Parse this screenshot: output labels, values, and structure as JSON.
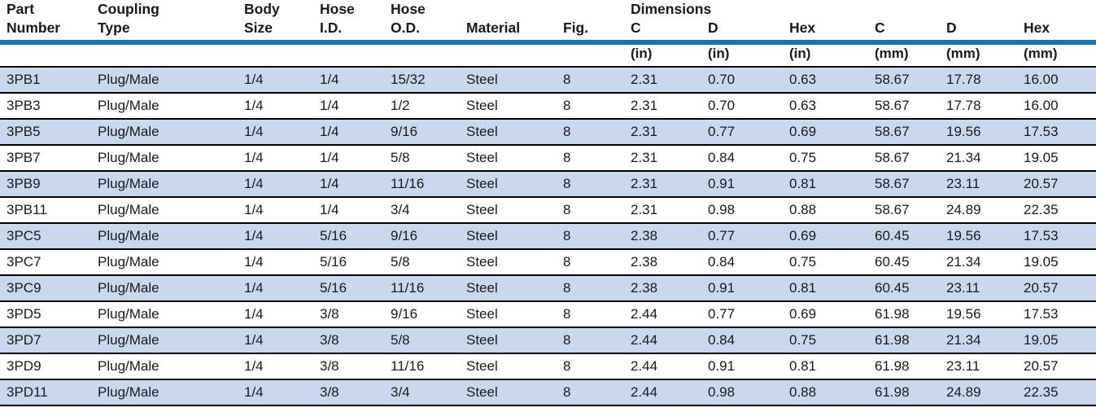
{
  "colors": {
    "header_rule_blue": "#0f75ba",
    "row_stripe_blue": "#c8d8ee",
    "row_separator": "#000000",
    "text": "#1a1a1a"
  },
  "table": {
    "dimensions_group_label": "Dimensions",
    "columns": [
      {
        "id": "part-number",
        "label": "Part\nNumber",
        "unit": ""
      },
      {
        "id": "coupling-type",
        "label": "Coupling\nType",
        "unit": ""
      },
      {
        "id": "body-size",
        "label": "Body\nSize",
        "unit": ""
      },
      {
        "id": "hose-id",
        "label": "Hose\nI.D.",
        "unit": ""
      },
      {
        "id": "hose-od",
        "label": "Hose\nO.D.",
        "unit": ""
      },
      {
        "id": "material",
        "label": "Material",
        "unit": ""
      },
      {
        "id": "fig",
        "label": "Fig.",
        "unit": ""
      },
      {
        "id": "c-in",
        "label": "C",
        "unit": "(in)"
      },
      {
        "id": "d-in",
        "label": "D",
        "unit": "(in)"
      },
      {
        "id": "hex-in",
        "label": "Hex",
        "unit": "(in)"
      },
      {
        "id": "c-mm",
        "label": "C",
        "unit": "(mm)"
      },
      {
        "id": "d-mm",
        "label": "D",
        "unit": "(mm)"
      },
      {
        "id": "hex-mm",
        "label": "Hex",
        "unit": "(mm)"
      }
    ],
    "rows": [
      [
        "3PB1",
        "Plug/Male",
        "1/4",
        "1/4",
        "15/32",
        "Steel",
        "8",
        "2.31",
        "0.70",
        "0.63",
        "58.67",
        "17.78",
        "16.00"
      ],
      [
        "3PB3",
        "Plug/Male",
        "1/4",
        "1/4",
        "1/2",
        "Steel",
        "8",
        "2.31",
        "0.70",
        "0.63",
        "58.67",
        "17.78",
        "16.00"
      ],
      [
        "3PB5",
        "Plug/Male",
        "1/4",
        "1/4",
        "9/16",
        "Steel",
        "8",
        "2.31",
        "0.77",
        "0.69",
        "58.67",
        "19.56",
        "17.53"
      ],
      [
        "3PB7",
        "Plug/Male",
        "1/4",
        "1/4",
        "5/8",
        "Steel",
        "8",
        "2.31",
        "0.84",
        "0.75",
        "58.67",
        "21.34",
        "19.05"
      ],
      [
        "3PB9",
        "Plug/Male",
        "1/4",
        "1/4",
        "11/16",
        "Steel",
        "8",
        "2.31",
        "0.91",
        "0.81",
        "58.67",
        "23.11",
        "20.57"
      ],
      [
        "3PB11",
        "Plug/Male",
        "1/4",
        "1/4",
        "3/4",
        "Steel",
        "8",
        "2.31",
        "0.98",
        "0.88",
        "58.67",
        "24.89",
        "22.35"
      ],
      [
        "3PC5",
        "Plug/Male",
        "1/4",
        "5/16",
        "9/16",
        "Steel",
        "8",
        "2.38",
        "0.77",
        "0.69",
        "60.45",
        "19.56",
        "17.53"
      ],
      [
        "3PC7",
        "Plug/Male",
        "1/4",
        "5/16",
        "5/8",
        "Steel",
        "8",
        "2.38",
        "0.84",
        "0.75",
        "60.45",
        "21.34",
        "19.05"
      ],
      [
        "3PC9",
        "Plug/Male",
        "1/4",
        "5/16",
        "11/16",
        "Steel",
        "8",
        "2.38",
        "0.91",
        "0.81",
        "60.45",
        "23.11",
        "20.57"
      ],
      [
        "3PD5",
        "Plug/Male",
        "1/4",
        "3/8",
        "9/16",
        "Steel",
        "8",
        "2.44",
        "0.77",
        "0.69",
        "61.98",
        "19.56",
        "17.53"
      ],
      [
        "3PD7",
        "Plug/Male",
        "1/4",
        "3/8",
        "5/8",
        "Steel",
        "8",
        "2.44",
        "0.84",
        "0.75",
        "61.98",
        "21.34",
        "19.05"
      ],
      [
        "3PD9",
        "Plug/Male",
        "1/4",
        "3/8",
        "11/16",
        "Steel",
        "8",
        "2.44",
        "0.91",
        "0.81",
        "61.98",
        "23.11",
        "20.57"
      ],
      [
        "3PD11",
        "Plug/Male",
        "1/4",
        "3/8",
        "3/4",
        "Steel",
        "8",
        "2.44",
        "0.98",
        "0.88",
        "61.98",
        "24.89",
        "22.35"
      ]
    ]
  }
}
